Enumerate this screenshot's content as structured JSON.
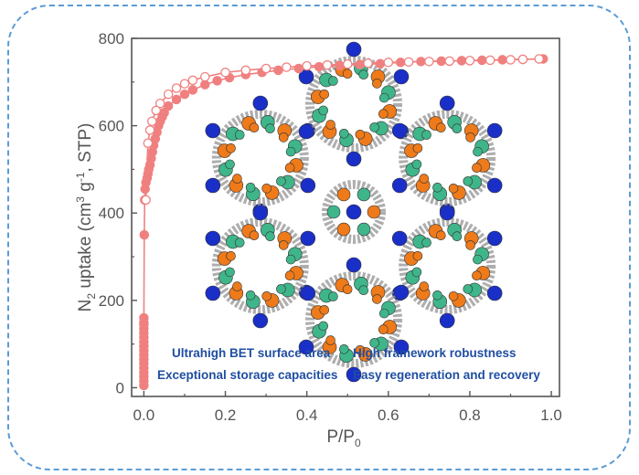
{
  "colors": {
    "border": "#5b9bd5",
    "series": "#f08080",
    "axis": "#555555",
    "caption": "#1f4ea1",
    "structure_blue": "#1a2fc7",
    "structure_orange": "#ee7a1a",
    "structure_green": "#3fb58a",
    "structure_frame": "#9a9a9a"
  },
  "inset": {
    "description_icon": "mof-crystal-structure-icon",
    "captions": [
      "Ultrahigh  BET surface area",
      "High framework robustness",
      "Exceptional storage capacities",
      "Easy regeneration and recovery"
    ]
  },
  "chart_data": {
    "type": "scatter",
    "title": "",
    "xlabel": "P/P0",
    "xlabel_main": "P/P",
    "xlabel_sub": "0",
    "ylabel": "N2 uptake (cm3 g-1, STP)",
    "xlim": [
      -0.03,
      1.02
    ],
    "ylim": [
      -20,
      800
    ],
    "xticks": [
      0.0,
      0.2,
      0.4,
      0.6,
      0.8,
      1.0
    ],
    "xtick_labels": [
      "0.0",
      "0.2",
      "0.4",
      "0.6",
      "0.8",
      "1.0"
    ],
    "yticks": [
      0,
      200,
      400,
      600,
      800
    ],
    "ytick_labels": [
      "0",
      "200",
      "400",
      "600",
      "800"
    ],
    "grid": false,
    "series": [
      {
        "marker": "filled-circle",
        "x": [
          0.0,
          0.0,
          0.0,
          0.0,
          0.0,
          0.0,
          0.0,
          0.0,
          0.0,
          0.0,
          0.0,
          0.0,
          0.0,
          0.0,
          0.0,
          0.0,
          0.0,
          0.001,
          0.002,
          0.003,
          0.005,
          0.008,
          0.01,
          0.012,
          0.015,
          0.018,
          0.021,
          0.024,
          0.028,
          0.032,
          0.036,
          0.04,
          0.045,
          0.05,
          0.06,
          0.08,
          0.1,
          0.12,
          0.15,
          0.18,
          0.21,
          0.25,
          0.29,
          0.33,
          0.38,
          0.43,
          0.48,
          0.53,
          0.58,
          0.63,
          0.68,
          0.73,
          0.78,
          0.83,
          0.88,
          0.93,
          0.98
        ],
        "y": [
          5,
          15,
          25,
          35,
          45,
          55,
          65,
          75,
          85,
          95,
          105,
          115,
          125,
          135,
          145,
          150,
          160,
          350,
          430,
          455,
          470,
          480,
          490,
          500,
          510,
          525,
          540,
          555,
          570,
          585,
          600,
          610,
          620,
          630,
          645,
          660,
          672,
          682,
          694,
          703,
          710,
          717,
          722,
          727,
          731,
          735,
          738,
          740,
          742,
          745,
          747,
          748,
          749,
          750,
          751,
          752,
          753
        ]
      },
      {
        "marker": "open-circle",
        "x": [
          0.97,
          0.93,
          0.9,
          0.85,
          0.8,
          0.75,
          0.7,
          0.65,
          0.6,
          0.55,
          0.5,
          0.45,
          0.4,
          0.35,
          0.3,
          0.25,
          0.2,
          0.15,
          0.12,
          0.1,
          0.08,
          0.06,
          0.04,
          0.03,
          0.02,
          0.015,
          0.01,
          0.005
        ],
        "y": [
          753,
          752,
          751,
          750,
          749,
          748,
          747,
          746,
          745,
          743,
          741,
          739,
          737,
          734,
          731,
          727,
          722,
          712,
          704,
          696,
          686,
          672,
          651,
          635,
          610,
          590,
          560,
          430
        ]
      }
    ]
  }
}
